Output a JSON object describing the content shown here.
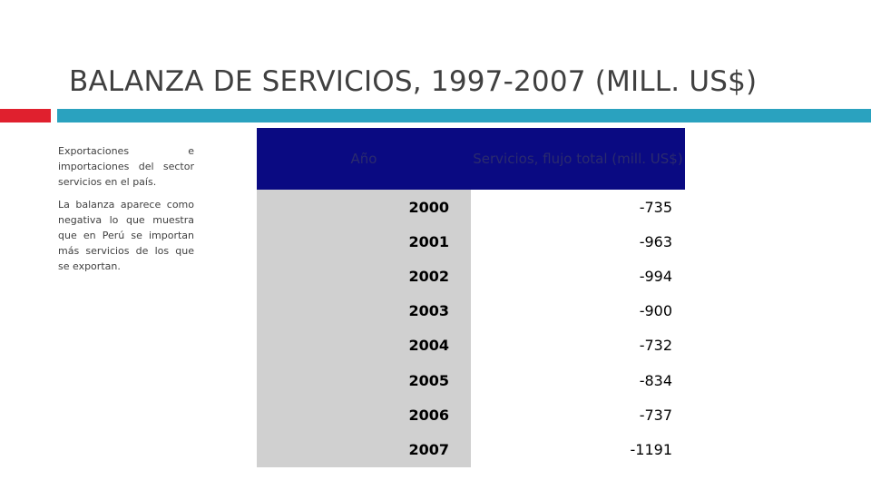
{
  "slide": {
    "title": "BALANZA DE SERVICIOS, 1997-2007 (MILL. US$)",
    "description": [
      "Exportaciones e importaciones del sector servicios en el país.",
      "La balanza aparece como negativa lo que muestra que en Perú se importan más servicios de los que se exportan."
    ]
  },
  "table": {
    "headers": [
      "Año",
      "Servicios, flujo total (mill. US$)"
    ],
    "rows": [
      {
        "year": "2000",
        "value": "-735"
      },
      {
        "year": "2001",
        "value": "-963"
      },
      {
        "year": "2002",
        "value": "-994"
      },
      {
        "year": "2003",
        "value": "-900"
      },
      {
        "year": "2004",
        "value": "-732"
      },
      {
        "year": "2005",
        "value": "-834"
      },
      {
        "year": "2006",
        "value": "-737"
      },
      {
        "year": "2007",
        "value": "-1191"
      }
    ]
  },
  "colors": {
    "accent_red": "#e0202e",
    "accent_teal": "#2aa2bf",
    "header_bg": "#0a0a82",
    "year_col_bg": "#d0d0d0"
  }
}
